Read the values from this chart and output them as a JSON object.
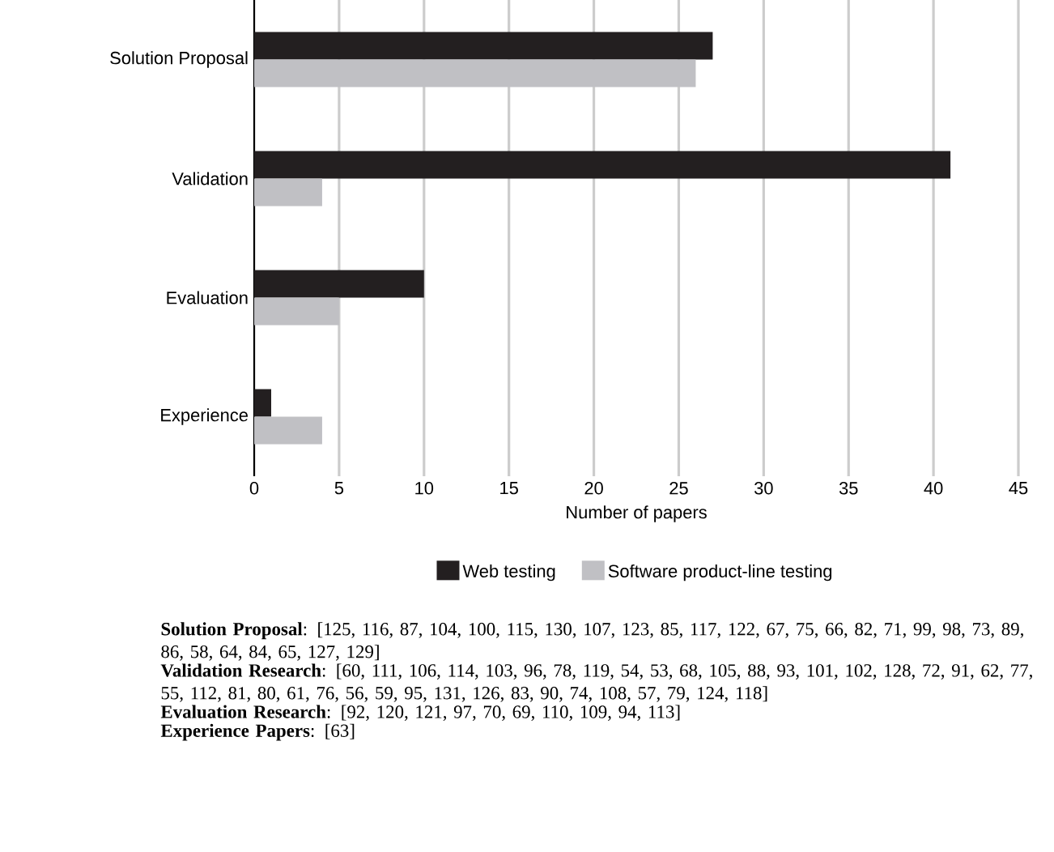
{
  "chart_data": {
    "type": "bar",
    "orientation": "horizontal",
    "xlabel": "Number of papers",
    "categories": [
      "Solution Proposal",
      "Validation",
      "Evaluation",
      "Experience"
    ],
    "series": [
      {
        "name": "Web testing",
        "color": "#231f20",
        "values": [
          27,
          41,
          10,
          1
        ]
      },
      {
        "name": "Software product-line testing",
        "color": "#c0c0c4",
        "values": [
          26,
          4,
          5,
          4
        ]
      }
    ],
    "xlim": [
      0,
      45
    ],
    "xticks": [
      0,
      5,
      10,
      15,
      20,
      25,
      30,
      35,
      40,
      45
    ],
    "grid": "x",
    "legend": "bottom",
    "annotations": [
      "**Solution Proposal**: [125, 116, 87, 104, 100, 115, 130, 107, 123, 85, 117, 122, 67, 75, 66, 82, 71, 99, 98, 73, 89, 86, 58, 64, 84, 65, 127, 129]",
      "**Validation Research**: [60, 111, 106, 114, 103, 96, 78, 119, 54, 53, 68, 105, 88, 93, 101, 102, 128, 72, 91, 62, 77, 55, 112, 81, 80, 61, 76, 56, 59, 95, 131, 126, 83, 90, 74, 108, 57, 79, 124, 118]",
      "**Evaluation Research**: [92, 120, 121, 97, 70, 69, 110, 109, 94, 113]",
      "**Experience Papers**: [63]"
    ]
  }
}
